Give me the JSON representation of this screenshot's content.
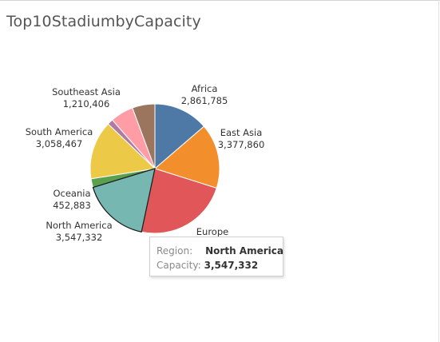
{
  "title": "Top10StadiumbyCapacity",
  "chart_data": {
    "type": "pie",
    "title": "Top10StadiumbyCapacity",
    "slices": [
      {
        "name": "Africa",
        "value": 2861785,
        "value_label": "2,861,785",
        "color": "#4e79a7",
        "show_label": true
      },
      {
        "name": "East Asia",
        "value": 3377860,
        "value_label": "3,377,860",
        "color": "#f28e2b",
        "show_label": true
      },
      {
        "name": "Europe",
        "value": 4900000,
        "value_label": "",
        "color": "#e15759",
        "show_label": true
      },
      {
        "name": "North America",
        "value": 3547332,
        "value_label": "3,547,332",
        "color": "#76b7b2",
        "show_label": true,
        "highlighted": true
      },
      {
        "name": "Oceania",
        "value": 452883,
        "value_label": "452,883",
        "color": "#59a14f",
        "show_label": true
      },
      {
        "name": "South America",
        "value": 3058467,
        "value_label": "3,058,467",
        "color": "#edc948",
        "show_label": true
      },
      {
        "name": "",
        "value": 300000,
        "value_label": "",
        "color": "#b07aa1",
        "show_label": false
      },
      {
        "name": "Southeast Asia",
        "value": 1210406,
        "value_label": "1,210,406",
        "color": "#ff9da7",
        "show_label": true
      },
      {
        "name": "",
        "value": 1180000,
        "value_label": "",
        "color": "#9c755f",
        "show_label": false
      }
    ]
  },
  "tooltip": {
    "region_key": "Region:",
    "region_value": "North America",
    "capacity_key": "Capacity:",
    "capacity_value": "3,547,332"
  }
}
